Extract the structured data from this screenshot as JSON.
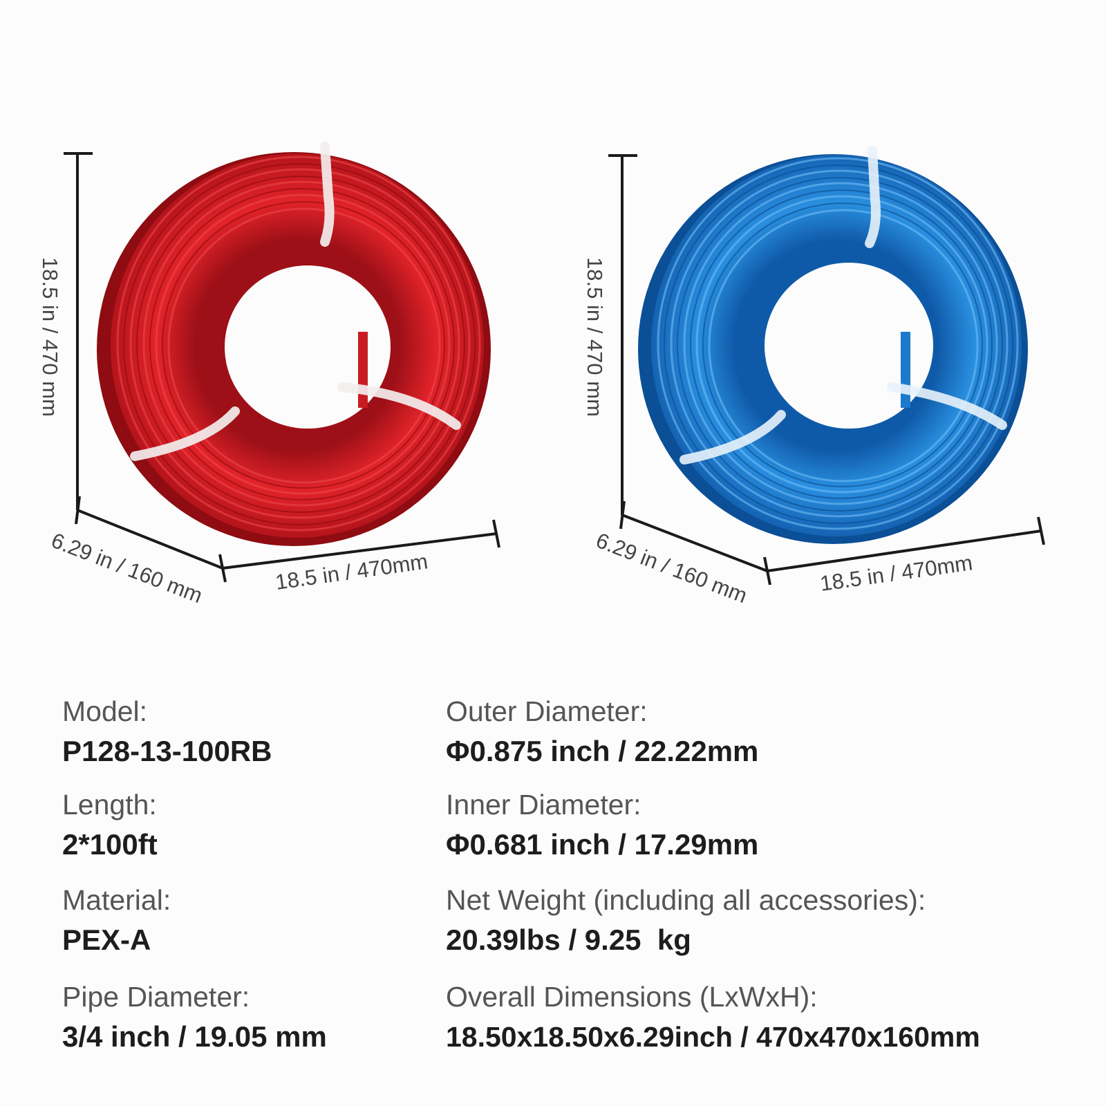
{
  "colors": {
    "red_coil": "#e2232a",
    "blue_coil": "#1f86da",
    "dimension_line": "#1a1a1a",
    "label_text": "#555555",
    "value_text": "#1d1d1d"
  },
  "products": [
    {
      "name": "red-pex-coil",
      "height_label": "18.5 in / 470 mm",
      "depth_label": "6.29 in / 160 mm",
      "width_label": "18.5 in / 470mm"
    },
    {
      "name": "blue-pex-coil",
      "height_label": "18.5 in / 470 mm",
      "depth_label": "6.29 in / 160 mm",
      "width_label": "18.5 in / 470mm"
    }
  ],
  "specs": {
    "model": {
      "label": "Model:",
      "value": "P128-13-100RB"
    },
    "length": {
      "label": "Length:",
      "value": "2*100ft"
    },
    "material": {
      "label": "Material:",
      "value": "PEX-A"
    },
    "pipe_diameter": {
      "label": "Pipe Diameter:",
      "value": "3/4 inch / 19.05 mm"
    },
    "outer_diameter": {
      "label": "Outer Diameter:",
      "value": "Φ0.875 inch / 22.22mm"
    },
    "inner_diameter": {
      "label": "Inner Diameter:",
      "value": "Φ0.681 inch / 17.29mm"
    },
    "net_weight": {
      "label": "Net Weight (including all accessories):",
      "value": "20.39lbs / 9.25  kg"
    },
    "overall_dimensions": {
      "label": "Overall Dimensions (LxWxH):",
      "value": "18.50x18.50x6.29inch / 470x470x160mm"
    }
  }
}
